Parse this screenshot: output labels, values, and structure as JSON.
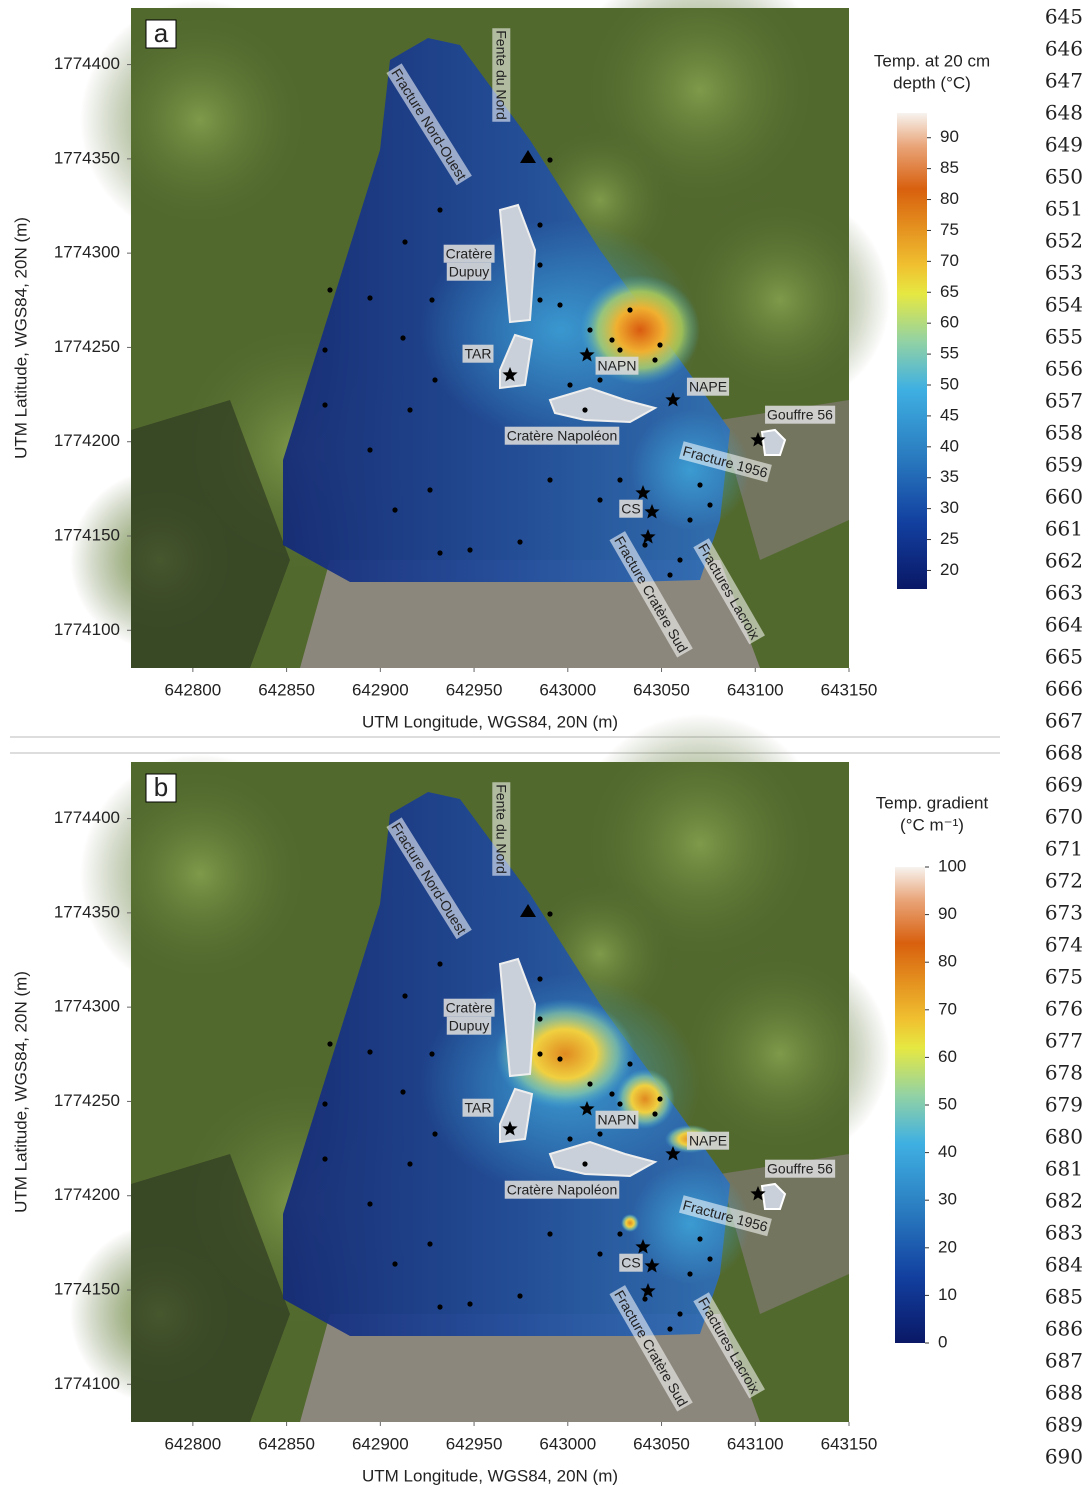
{
  "panels": [
    {
      "label": "a",
      "x_title": "UTM Longitude, WGS84, 20N (m)",
      "y_title": "UTM Latitude, WGS84, 20N (m)",
      "xlim": [
        642767,
        643150
      ],
      "xticks": [
        642800,
        642850,
        642900,
        642950,
        643000,
        643050,
        643100,
        643150
      ],
      "ylim": [
        1774080,
        1774430
      ],
      "yticks": [
        1774100,
        1774150,
        1774200,
        1774250,
        1774300,
        1774350,
        1774400
      ],
      "colorbar_title": [
        "Temp. at 20 cm",
        "depth (°C)"
      ],
      "clim": [
        17,
        94
      ],
      "cticks": [
        20,
        25,
        30,
        35,
        40,
        45,
        50,
        55,
        60,
        65,
        70,
        75,
        80,
        85,
        90
      ],
      "annotations": [
        "Fracture Nord-Ouest",
        "Fente du Nord",
        "Cratère",
        "Dupuy",
        "TAR",
        "NAPN",
        "NAPE",
        "Gouffre 56",
        "Cratère Napoléon",
        "Fracture 1956",
        "CS",
        "Fracture Cratère Sud",
        "Fractures Lacroix"
      ]
    },
    {
      "label": "b",
      "x_title": "UTM Longitude, WGS84, 20N (m)",
      "y_title": "UTM Latitude, WGS84, 20N (m)",
      "xlim": [
        642767,
        643150
      ],
      "xticks": [
        642800,
        642850,
        642900,
        642950,
        643000,
        643050,
        643100,
        643150
      ],
      "ylim": [
        1774080,
        1774430
      ],
      "yticks": [
        1774100,
        1774150,
        1774200,
        1774250,
        1774300,
        1774350,
        1774400
      ],
      "colorbar_title": [
        "Temp. gradient",
        "(°C m⁻¹)"
      ],
      "clim": [
        0,
        100
      ],
      "cticks": [
        0,
        10,
        20,
        30,
        40,
        50,
        60,
        70,
        80,
        90,
        100
      ],
      "annotations": [
        "Fracture Nord-Ouest",
        "Fente du Nord",
        "Cratère",
        "Dupuy",
        "TAR",
        "NAPN",
        "NAPE",
        "Gouffre 56",
        "Cratère Napoléon",
        "Fracture 1956",
        "CS",
        "Fracture Cratère Sud",
        "Fractures Lacroix"
      ]
    }
  ],
  "line_numbers": [
    645,
    646,
    647,
    648,
    649,
    650,
    651,
    652,
    653,
    654,
    655,
    656,
    657,
    658,
    659,
    660,
    661,
    662,
    663,
    664,
    665,
    666,
    667,
    668,
    669,
    670,
    671,
    672,
    673,
    674,
    675,
    676,
    677,
    678,
    679,
    680,
    681,
    682,
    683,
    684,
    685,
    686,
    687,
    688,
    689,
    690
  ]
}
